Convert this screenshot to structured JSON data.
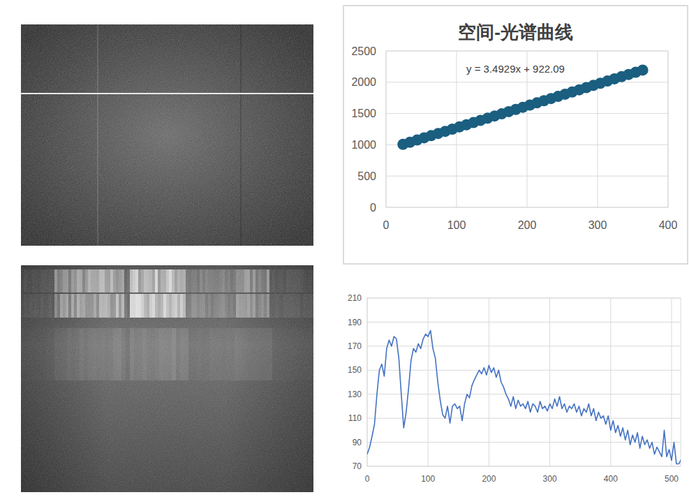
{
  "chart_data": [
    {
      "type": "scatter",
      "title": "空间-光谱曲线",
      "annotation": "y = 3.4929x + 922.09",
      "x": [
        24,
        34,
        44,
        54,
        64,
        74,
        84,
        94,
        104,
        114,
        124,
        134,
        144,
        154,
        164,
        174,
        184,
        194,
        204,
        214,
        224,
        234,
        244,
        254,
        264,
        274,
        284,
        294,
        304,
        314,
        324,
        334,
        344,
        354,
        364
      ],
      "values": [
        1006,
        1041,
        1076,
        1111,
        1146,
        1181,
        1215,
        1250,
        1285,
        1320,
        1355,
        1390,
        1425,
        1460,
        1495,
        1530,
        1565,
        1600,
        1635,
        1670,
        1705,
        1739,
        1774,
        1809,
        1844,
        1879,
        1914,
        1949,
        1984,
        2019,
        2054,
        2089,
        2124,
        2159,
        2194
      ],
      "color": "#1a5e80",
      "marker": "circle",
      "xlim": [
        0,
        400
      ],
      "xticks": [
        0,
        100,
        200,
        300,
        400
      ],
      "ylim": [
        0,
        2500
      ],
      "yticks": [
        0,
        500,
        1000,
        1500,
        2000,
        2500
      ],
      "grid": true
    },
    {
      "type": "line",
      "x": [
        0,
        4,
        8,
        12,
        16,
        20,
        24,
        28,
        32,
        36,
        40,
        44,
        48,
        52,
        56,
        60,
        64,
        68,
        72,
        76,
        80,
        84,
        88,
        92,
        96,
        100,
        104,
        108,
        112,
        116,
        120,
        124,
        128,
        132,
        136,
        140,
        144,
        148,
        152,
        156,
        160,
        164,
        168,
        172,
        176,
        180,
        184,
        188,
        192,
        196,
        200,
        204,
        208,
        212,
        216,
        220,
        224,
        228,
        232,
        236,
        240,
        244,
        248,
        252,
        256,
        260,
        264,
        268,
        272,
        276,
        280,
        284,
        288,
        292,
        296,
        300,
        304,
        308,
        312,
        316,
        320,
        324,
        328,
        332,
        336,
        340,
        344,
        348,
        352,
        356,
        360,
        364,
        368,
        372,
        376,
        380,
        384,
        388,
        392,
        396,
        400,
        404,
        408,
        412,
        416,
        420,
        424,
        428,
        432,
        436,
        440,
        444,
        448,
        452,
        456,
        460,
        464,
        468,
        472,
        476,
        480,
        484,
        488,
        492,
        496,
        500,
        504,
        508,
        512,
        516
      ],
      "values": [
        80,
        86,
        95,
        105,
        130,
        150,
        155,
        145,
        168,
        175,
        170,
        178,
        176,
        160,
        130,
        102,
        115,
        135,
        158,
        168,
        165,
        172,
        168,
        176,
        180,
        178,
        183,
        168,
        160,
        140,
        125,
        113,
        110,
        120,
        106,
        120,
        122,
        118,
        120,
        108,
        122,
        130,
        127,
        137,
        142,
        146,
        150,
        147,
        152,
        146,
        154,
        148,
        152,
        144,
        150,
        140,
        136,
        130,
        126,
        120,
        128,
        118,
        125,
        120,
        122,
        118,
        124,
        115,
        122,
        120,
        115,
        124,
        118,
        120,
        116,
        122,
        118,
        126,
        120,
        128,
        118,
        122,
        115,
        120,
        118,
        122,
        115,
        120,
        112,
        118,
        115,
        122,
        112,
        118,
        108,
        115,
        110,
        112,
        105,
        112,
        100,
        108,
        98,
        104,
        95,
        102,
        92,
        100,
        88,
        96,
        90,
        98,
        85,
        95,
        88,
        92,
        85,
        90,
        80,
        86,
        82,
        78,
        100,
        78,
        84,
        75,
        90,
        72,
        72,
        76
      ],
      "color": "#4472c4",
      "xlim": [
        0,
        515
      ],
      "xticks": [
        0,
        100,
        200,
        300,
        400,
        500
      ],
      "ylim": [
        70,
        210
      ],
      "yticks": [
        70,
        90,
        110,
        130,
        150,
        170,
        190,
        210
      ],
      "grid": true
    }
  ]
}
